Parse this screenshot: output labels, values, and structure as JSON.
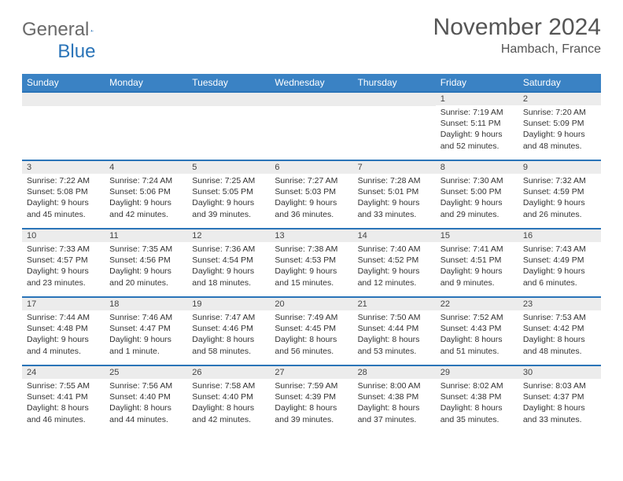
{
  "brand": {
    "part1": "General",
    "part2": "Blue"
  },
  "title": "November 2024",
  "location": "Hambach, France",
  "colors": {
    "header_bg": "#3a82c4",
    "border": "#2a74b8",
    "daynum_bg": "#ececec",
    "text": "#333333",
    "muted": "#555555"
  },
  "weekdays": [
    "Sunday",
    "Monday",
    "Tuesday",
    "Wednesday",
    "Thursday",
    "Friday",
    "Saturday"
  ],
  "weeks": [
    [
      null,
      null,
      null,
      null,
      null,
      {
        "n": "1",
        "sunrise": "Sunrise: 7:19 AM",
        "sunset": "Sunset: 5:11 PM",
        "daylight": "Daylight: 9 hours and 52 minutes."
      },
      {
        "n": "2",
        "sunrise": "Sunrise: 7:20 AM",
        "sunset": "Sunset: 5:09 PM",
        "daylight": "Daylight: 9 hours and 48 minutes."
      }
    ],
    [
      {
        "n": "3",
        "sunrise": "Sunrise: 7:22 AM",
        "sunset": "Sunset: 5:08 PM",
        "daylight": "Daylight: 9 hours and 45 minutes."
      },
      {
        "n": "4",
        "sunrise": "Sunrise: 7:24 AM",
        "sunset": "Sunset: 5:06 PM",
        "daylight": "Daylight: 9 hours and 42 minutes."
      },
      {
        "n": "5",
        "sunrise": "Sunrise: 7:25 AM",
        "sunset": "Sunset: 5:05 PM",
        "daylight": "Daylight: 9 hours and 39 minutes."
      },
      {
        "n": "6",
        "sunrise": "Sunrise: 7:27 AM",
        "sunset": "Sunset: 5:03 PM",
        "daylight": "Daylight: 9 hours and 36 minutes."
      },
      {
        "n": "7",
        "sunrise": "Sunrise: 7:28 AM",
        "sunset": "Sunset: 5:01 PM",
        "daylight": "Daylight: 9 hours and 33 minutes."
      },
      {
        "n": "8",
        "sunrise": "Sunrise: 7:30 AM",
        "sunset": "Sunset: 5:00 PM",
        "daylight": "Daylight: 9 hours and 29 minutes."
      },
      {
        "n": "9",
        "sunrise": "Sunrise: 7:32 AM",
        "sunset": "Sunset: 4:59 PM",
        "daylight": "Daylight: 9 hours and 26 minutes."
      }
    ],
    [
      {
        "n": "10",
        "sunrise": "Sunrise: 7:33 AM",
        "sunset": "Sunset: 4:57 PM",
        "daylight": "Daylight: 9 hours and 23 minutes."
      },
      {
        "n": "11",
        "sunrise": "Sunrise: 7:35 AM",
        "sunset": "Sunset: 4:56 PM",
        "daylight": "Daylight: 9 hours and 20 minutes."
      },
      {
        "n": "12",
        "sunrise": "Sunrise: 7:36 AM",
        "sunset": "Sunset: 4:54 PM",
        "daylight": "Daylight: 9 hours and 18 minutes."
      },
      {
        "n": "13",
        "sunrise": "Sunrise: 7:38 AM",
        "sunset": "Sunset: 4:53 PM",
        "daylight": "Daylight: 9 hours and 15 minutes."
      },
      {
        "n": "14",
        "sunrise": "Sunrise: 7:40 AM",
        "sunset": "Sunset: 4:52 PM",
        "daylight": "Daylight: 9 hours and 12 minutes."
      },
      {
        "n": "15",
        "sunrise": "Sunrise: 7:41 AM",
        "sunset": "Sunset: 4:51 PM",
        "daylight": "Daylight: 9 hours and 9 minutes."
      },
      {
        "n": "16",
        "sunrise": "Sunrise: 7:43 AM",
        "sunset": "Sunset: 4:49 PM",
        "daylight": "Daylight: 9 hours and 6 minutes."
      }
    ],
    [
      {
        "n": "17",
        "sunrise": "Sunrise: 7:44 AM",
        "sunset": "Sunset: 4:48 PM",
        "daylight": "Daylight: 9 hours and 4 minutes."
      },
      {
        "n": "18",
        "sunrise": "Sunrise: 7:46 AM",
        "sunset": "Sunset: 4:47 PM",
        "daylight": "Daylight: 9 hours and 1 minute."
      },
      {
        "n": "19",
        "sunrise": "Sunrise: 7:47 AM",
        "sunset": "Sunset: 4:46 PM",
        "daylight": "Daylight: 8 hours and 58 minutes."
      },
      {
        "n": "20",
        "sunrise": "Sunrise: 7:49 AM",
        "sunset": "Sunset: 4:45 PM",
        "daylight": "Daylight: 8 hours and 56 minutes."
      },
      {
        "n": "21",
        "sunrise": "Sunrise: 7:50 AM",
        "sunset": "Sunset: 4:44 PM",
        "daylight": "Daylight: 8 hours and 53 minutes."
      },
      {
        "n": "22",
        "sunrise": "Sunrise: 7:52 AM",
        "sunset": "Sunset: 4:43 PM",
        "daylight": "Daylight: 8 hours and 51 minutes."
      },
      {
        "n": "23",
        "sunrise": "Sunrise: 7:53 AM",
        "sunset": "Sunset: 4:42 PM",
        "daylight": "Daylight: 8 hours and 48 minutes."
      }
    ],
    [
      {
        "n": "24",
        "sunrise": "Sunrise: 7:55 AM",
        "sunset": "Sunset: 4:41 PM",
        "daylight": "Daylight: 8 hours and 46 minutes."
      },
      {
        "n": "25",
        "sunrise": "Sunrise: 7:56 AM",
        "sunset": "Sunset: 4:40 PM",
        "daylight": "Daylight: 8 hours and 44 minutes."
      },
      {
        "n": "26",
        "sunrise": "Sunrise: 7:58 AM",
        "sunset": "Sunset: 4:40 PM",
        "daylight": "Daylight: 8 hours and 42 minutes."
      },
      {
        "n": "27",
        "sunrise": "Sunrise: 7:59 AM",
        "sunset": "Sunset: 4:39 PM",
        "daylight": "Daylight: 8 hours and 39 minutes."
      },
      {
        "n": "28",
        "sunrise": "Sunrise: 8:00 AM",
        "sunset": "Sunset: 4:38 PM",
        "daylight": "Daylight: 8 hours and 37 minutes."
      },
      {
        "n": "29",
        "sunrise": "Sunrise: 8:02 AM",
        "sunset": "Sunset: 4:38 PM",
        "daylight": "Daylight: 8 hours and 35 minutes."
      },
      {
        "n": "30",
        "sunrise": "Sunrise: 8:03 AM",
        "sunset": "Sunset: 4:37 PM",
        "daylight": "Daylight: 8 hours and 33 minutes."
      }
    ]
  ]
}
